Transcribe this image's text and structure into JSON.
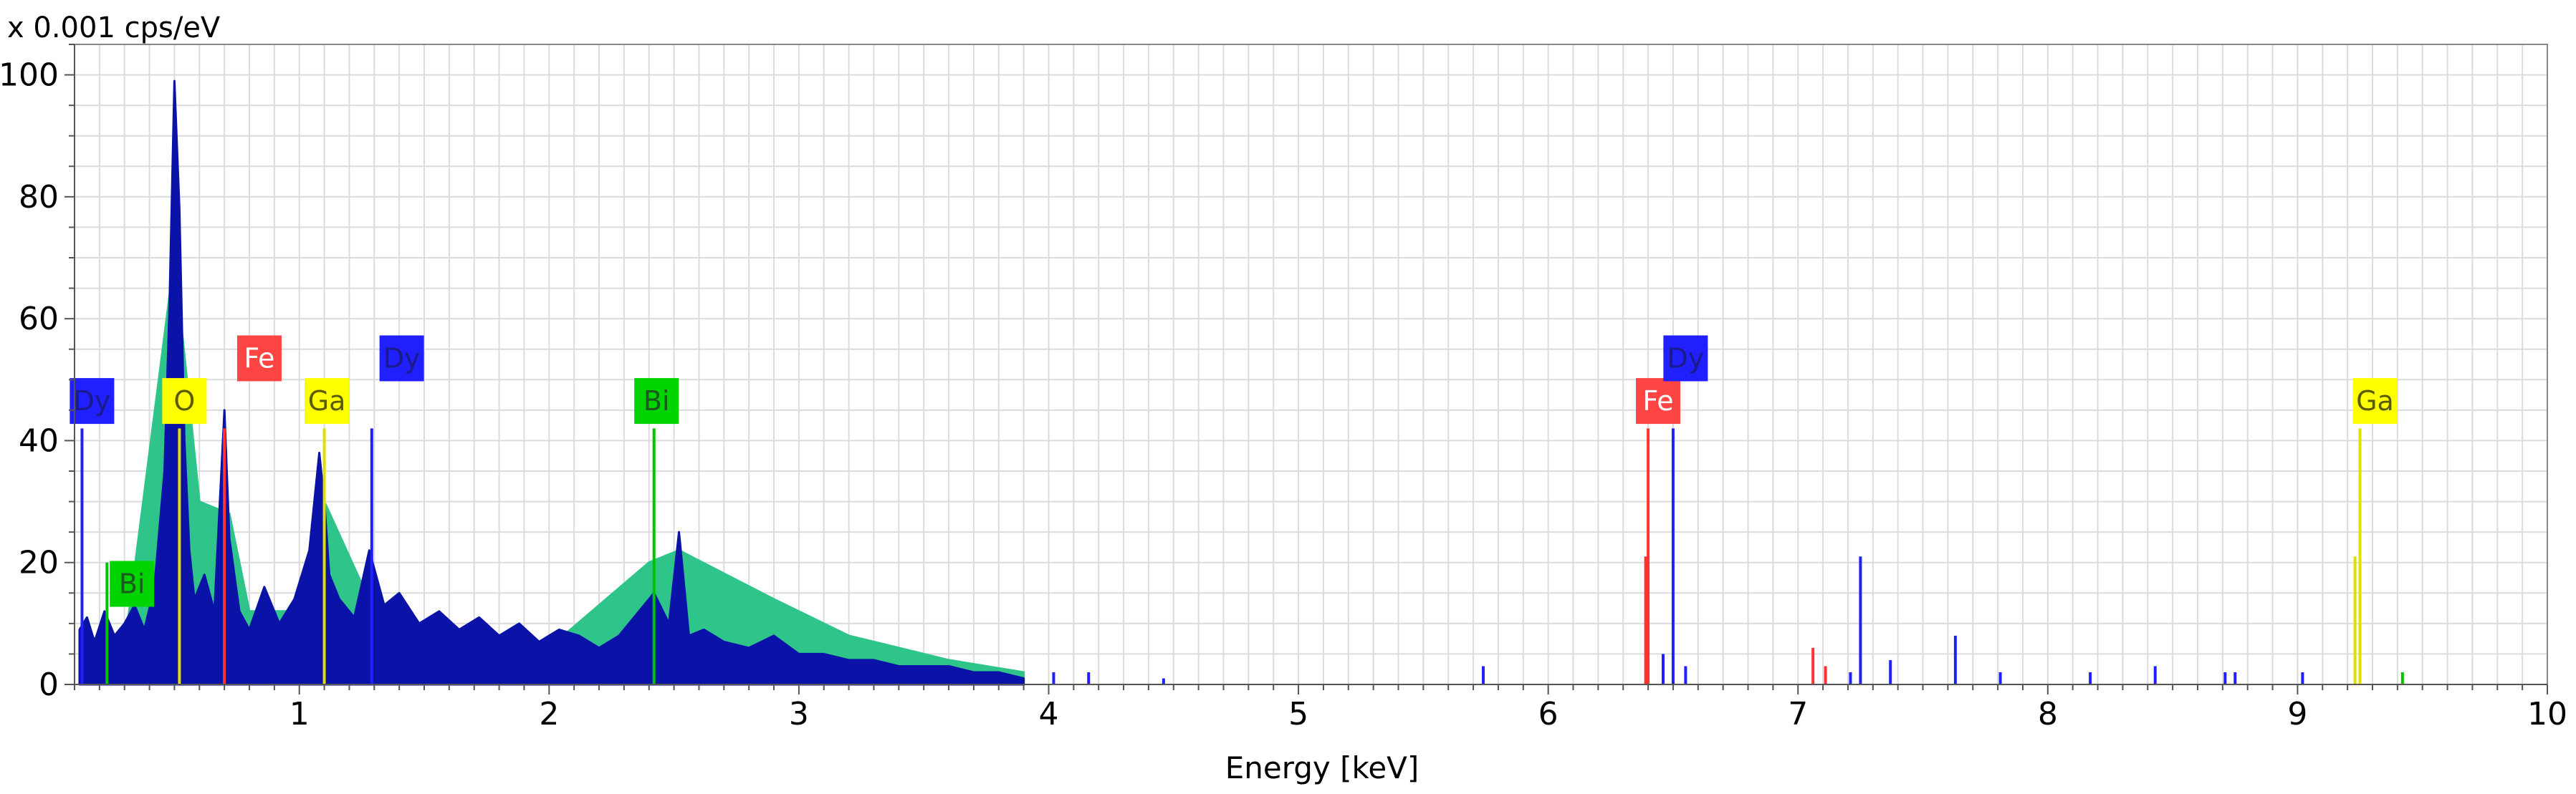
{
  "chart_data": {
    "type": "line",
    "title": "",
    "unit_label": "x 0.001 cps/eV",
    "xlabel": "Energy [keV]",
    "ylabel": "",
    "xlim": [
      0.1,
      10
    ],
    "ylim": [
      0,
      105
    ],
    "grid": true,
    "x_ticks": [
      1,
      2,
      3,
      4,
      5,
      6,
      7,
      8,
      9,
      10
    ],
    "y_ticks": [
      0,
      20,
      40,
      60,
      80,
      100
    ],
    "colors": {
      "spectrum_primary": "#0a12a8",
      "spectrum_secondary": "#2ec48a",
      "Fe": "#ff3333",
      "Dy": "#2020ff",
      "Bi": "#00c400",
      "Ga": "#e0e000",
      "O": "#e0e000"
    },
    "spectrum": {
      "x": [
        0.12,
        0.15,
        0.18,
        0.22,
        0.26,
        0.3,
        0.34,
        0.38,
        0.42,
        0.46,
        0.48,
        0.5,
        0.52,
        0.54,
        0.56,
        0.58,
        0.62,
        0.66,
        0.7,
        0.72,
        0.76,
        0.8,
        0.86,
        0.92,
        0.98,
        1.04,
        1.08,
        1.1,
        1.12,
        1.16,
        1.22,
        1.28,
        1.34,
        1.4,
        1.48,
        1.56,
        1.64,
        1.72,
        1.8,
        1.88,
        1.96,
        2.04,
        2.12,
        2.2,
        2.28,
        2.36,
        2.42,
        2.48,
        2.52,
        2.56,
        2.62,
        2.7,
        2.8,
        2.9,
        3.0,
        3.1,
        3.2,
        3.3,
        3.4,
        3.5,
        3.6,
        3.7,
        3.8,
        3.9
      ],
      "y": [
        9,
        11,
        7,
        12,
        8,
        10,
        13,
        9,
        16,
        35,
        62,
        99,
        78,
        40,
        22,
        14,
        18,
        12,
        45,
        24,
        12,
        9,
        16,
        10,
        14,
        22,
        38,
        30,
        18,
        14,
        11,
        22,
        13,
        15,
        10,
        12,
        9,
        11,
        8,
        10,
        7,
        9,
        8,
        6,
        8,
        12,
        15,
        10,
        25,
        8,
        9,
        7,
        6,
        8,
        5,
        5,
        4,
        4,
        3,
        3,
        3,
        2,
        2,
        1
      ]
    },
    "secondary_spectrum": {
      "x": [
        0.15,
        0.3,
        0.5,
        0.6,
        0.72,
        0.8,
        1.0,
        1.1,
        1.3,
        1.6,
        2.0,
        2.4,
        2.52,
        2.9,
        3.2,
        3.6,
        3.9
      ],
      "y": [
        8,
        6,
        70,
        30,
        28,
        12,
        12,
        30,
        12,
        8,
        6,
        20,
        22,
        14,
        8,
        4,
        2
      ]
    },
    "peak_lines": [
      {
        "element": "Dy",
        "x": 0.13,
        "y": 42
      },
      {
        "element": "Bi",
        "x": 0.23,
        "y": 20
      },
      {
        "element": "O",
        "x": 0.52,
        "y": 42
      },
      {
        "element": "Fe",
        "x": 0.7,
        "y": 42
      },
      {
        "element": "Ga",
        "x": 1.1,
        "y": 42
      },
      {
        "element": "Dy",
        "x": 1.29,
        "y": 42
      },
      {
        "element": "Bi",
        "x": 2.42,
        "y": 42
      },
      {
        "element": "Fe",
        "x": 6.4,
        "y": 42
      },
      {
        "element": "Fe",
        "x": 6.39,
        "y": 21
      },
      {
        "element": "Dy",
        "x": 6.5,
        "y": 42
      },
      {
        "element": "Ga",
        "x": 9.25,
        "y": 42
      },
      {
        "element": "Ga",
        "x": 9.23,
        "y": 21
      },
      {
        "element": "Fe",
        "x": 7.06,
        "y": 6
      },
      {
        "element": "Fe",
        "x": 7.11,
        "y": 3
      },
      {
        "element": "Dy",
        "x": 4.02,
        "y": 2
      },
      {
        "element": "Dy",
        "x": 4.16,
        "y": 2
      },
      {
        "element": "Dy",
        "x": 4.46,
        "y": 1
      },
      {
        "element": "Dy",
        "x": 5.74,
        "y": 3
      },
      {
        "element": "Dy",
        "x": 6.46,
        "y": 5
      },
      {
        "element": "Dy",
        "x": 6.55,
        "y": 3
      },
      {
        "element": "Dy",
        "x": 7.21,
        "y": 2
      },
      {
        "element": "Dy",
        "x": 7.25,
        "y": 21
      },
      {
        "element": "Dy",
        "x": 7.37,
        "y": 4
      },
      {
        "element": "Dy",
        "x": 7.63,
        "y": 8
      },
      {
        "element": "Dy",
        "x": 7.81,
        "y": 2
      },
      {
        "element": "Dy",
        "x": 8.17,
        "y": 2
      },
      {
        "element": "Dy",
        "x": 8.43,
        "y": 3
      },
      {
        "element": "Dy",
        "x": 8.71,
        "y": 2
      },
      {
        "element": "Dy",
        "x": 8.75,
        "y": 2
      },
      {
        "element": "Dy",
        "x": 9.02,
        "y": 2
      },
      {
        "element": "Bi",
        "x": 9.42,
        "y": 2
      }
    ],
    "element_labels": [
      {
        "text": "Dy",
        "x": 0.17,
        "y": 46.5,
        "color": "#2020ff",
        "text_color": "#1a1a8a"
      },
      {
        "text": "Bi",
        "x": 0.33,
        "y": 16.5,
        "color": "#00d400",
        "text_color": "#1a5a1a"
      },
      {
        "text": "O",
        "x": 0.54,
        "y": 46.5,
        "color": "#ffff00",
        "text_color": "#5a5a00"
      },
      {
        "text": "Fe",
        "x": 0.84,
        "y": 53.5,
        "color": "#ff4444",
        "text_color": "#ffffff"
      },
      {
        "text": "Ga",
        "x": 1.11,
        "y": 46.5,
        "color": "#ffff00",
        "text_color": "#5a5a00"
      },
      {
        "text": "Dy",
        "x": 1.41,
        "y": 53.5,
        "color": "#2020ff",
        "text_color": "#1a1a8a"
      },
      {
        "text": "Bi",
        "x": 2.43,
        "y": 46.5,
        "color": "#00d400",
        "text_color": "#1a5a1a"
      },
      {
        "text": "Fe",
        "x": 6.44,
        "y": 46.5,
        "color": "#ff4444",
        "text_color": "#ffffff"
      },
      {
        "text": "Dy",
        "x": 6.55,
        "y": 53.5,
        "color": "#2020ff",
        "text_color": "#1a1a8a"
      },
      {
        "text": "Ga",
        "x": 9.31,
        "y": 46.5,
        "color": "#ffff00",
        "text_color": "#5a5a00"
      }
    ]
  }
}
